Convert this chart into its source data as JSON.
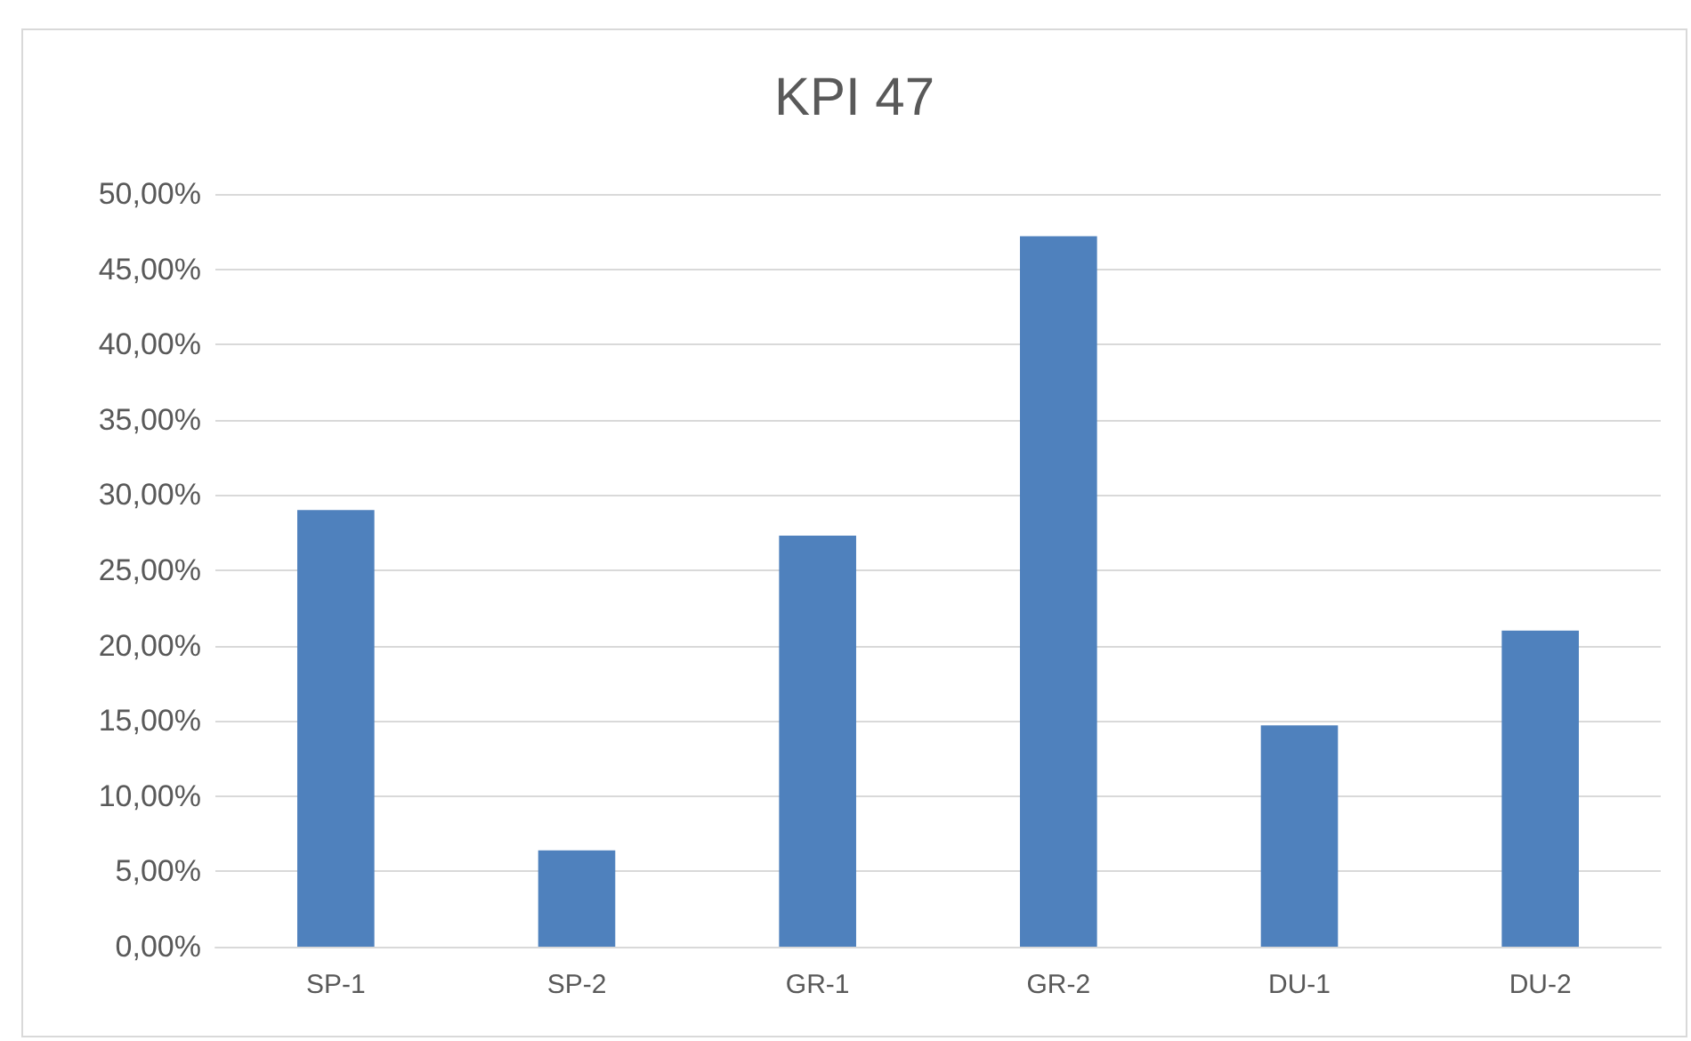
{
  "chart_data": {
    "type": "bar",
    "title": "KPI 47",
    "categories": [
      "SP-1",
      "SP-2",
      "GR-1",
      "GR-2",
      "DU-1",
      "DU-2"
    ],
    "values": [
      29.0,
      6.4,
      27.3,
      47.2,
      14.7,
      21.0
    ],
    "color": "#4f81bd",
    "ylim": [
      0,
      50
    ],
    "yticks": [
      {
        "value": 0,
        "label": "0,00%"
      },
      {
        "value": 5,
        "label": "5,00%"
      },
      {
        "value": 10,
        "label": "10,00%"
      },
      {
        "value": 15,
        "label": "15,00%"
      },
      {
        "value": 20,
        "label": "20,00%"
      },
      {
        "value": 25,
        "label": "25,00%"
      },
      {
        "value": 30,
        "label": "30,00%"
      },
      {
        "value": 35,
        "label": "35,00%"
      },
      {
        "value": 40,
        "label": "40,00%"
      },
      {
        "value": 45,
        "label": "45,00%"
      },
      {
        "value": 50,
        "label": "50,00%"
      }
    ],
    "grid": "y"
  }
}
